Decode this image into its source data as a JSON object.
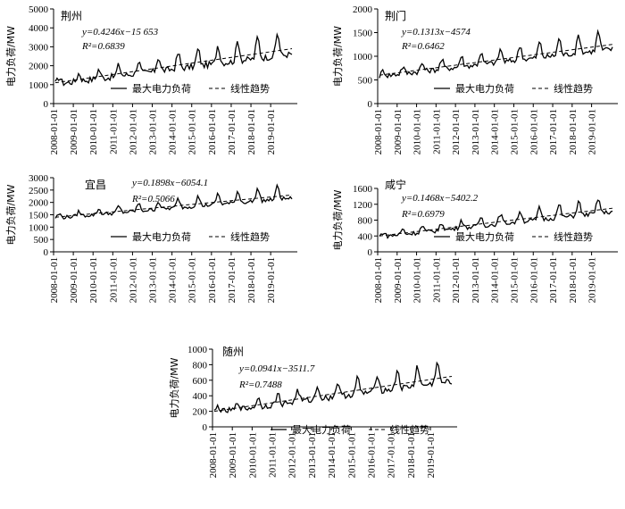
{
  "x_tick_labels": [
    "2008-01-01",
    "2009-01-01",
    "2010-01-01",
    "2011-01-01",
    "2012-01-01",
    "2013-01-01",
    "2014-01-01",
    "2015-01-01",
    "2016-01-01",
    "2017-01-01",
    "2018-01-01",
    "2019-01-01"
  ],
  "chart_data": [
    {
      "type": "line",
      "title": "荆州",
      "ylabel": "电力负荷/MW",
      "ylim": [
        0,
        5000
      ],
      "yticks": [
        0,
        1000,
        2000,
        3000,
        4000,
        5000
      ],
      "x": [
        "2008-01",
        "2020-01"
      ],
      "equation": "y=0.4246x−15 653",
      "r2": "R²=0.6839",
      "trend_start": 1100,
      "trend_end": 2900,
      "amplitude": 950,
      "peaks": 12,
      "legend": {
        "series": "最大电力负荷",
        "trend": "线性趋势"
      }
    },
    {
      "type": "line",
      "title": "荆门",
      "ylabel": "电力负荷/MW",
      "ylim": [
        0,
        2000
      ],
      "yticks": [
        0,
        500,
        1000,
        1500,
        2000
      ],
      "x": [
        "2008-01",
        "2020-01"
      ],
      "equation": "y=0.1313x−4574",
      "r2": "R²=0.6462",
      "trend_start": 600,
      "trend_end": 1250,
      "amplitude": 320,
      "peaks": 12,
      "legend": {
        "series": "最大电力负荷",
        "trend": "线性趋势"
      }
    },
    {
      "type": "line",
      "title": "宜昌",
      "ylabel": "电力负荷/MW",
      "ylim": [
        0,
        3000
      ],
      "yticks": [
        0,
        500,
        1000,
        1500,
        2000,
        2500,
        3000
      ],
      "x": [
        "2008-01",
        "2020-01"
      ],
      "equation": "y=0.1898x−6054.1",
      "r2": "R²=0.5066",
      "trend_start": 1400,
      "trend_end": 2300,
      "amplitude": 420,
      "peaks": 12,
      "legend": {
        "series": "最大电力负荷",
        "trend": "线性趋势"
      }
    },
    {
      "type": "line",
      "title": "咸宁",
      "ylabel": "电力负荷/MW",
      "ylim": [
        0,
        1600
      ],
      "yticks": [
        0,
        400,
        800,
        1200,
        1600
      ],
      "x": [
        "2008-01",
        "2020-01"
      ],
      "equation": "y=0.1468x−5402.2",
      "r2": "R²=0.6979",
      "trend_start": 400,
      "trend_end": 1100,
      "amplitude": 300,
      "peaks": 12,
      "legend": {
        "series": "最大电力负荷",
        "trend": "线性趋势"
      }
    },
    {
      "type": "line",
      "title": "随州",
      "ylabel": "电力负荷/MW",
      "ylim": [
        0,
        1000
      ],
      "yticks": [
        0,
        200,
        400,
        600,
        800,
        1000
      ],
      "x": [
        "2008-01",
        "2020-01"
      ],
      "equation": "y=0.0941x−3511.7",
      "r2": "R²=0.7488",
      "trend_start": 200,
      "trend_end": 650,
      "amplitude": 220,
      "peaks": 12,
      "legend": {
        "series": "最大电力负荷",
        "trend": "线性趋势"
      }
    }
  ]
}
